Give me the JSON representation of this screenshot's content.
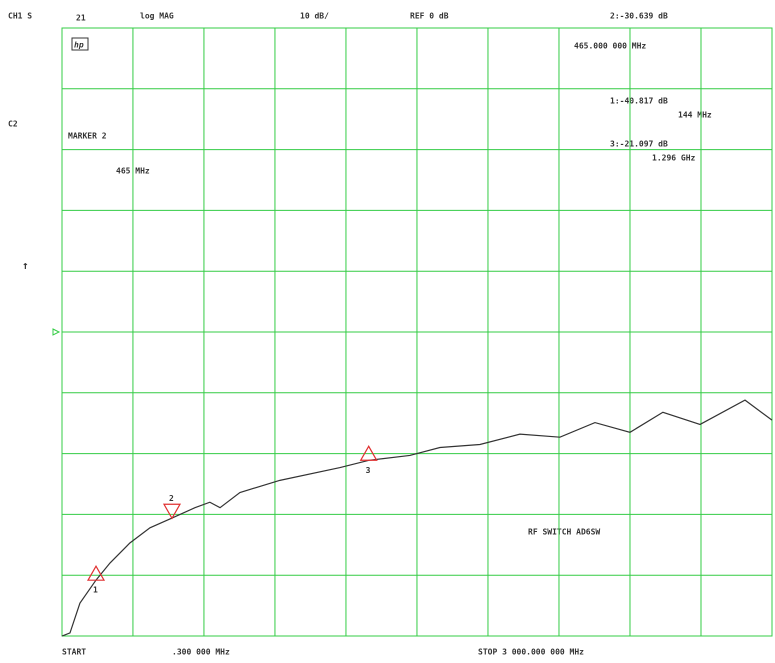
{
  "channel": "CH1 S",
  "param": "21",
  "format": "log MAG",
  "scale": "10 dB/",
  "ref": "REF 0 dB",
  "active_marker_readout": {
    "value": "2:-30.639 dB",
    "freq": "465.000 000 MHz"
  },
  "marker_list": [
    {
      "value": "1:-40.817 dB",
      "freq": "144 MHz"
    },
    {
      "value": "3:-21.097 dB",
      "freq": "1.296 GHz"
    }
  ],
  "side_label": "C2",
  "marker_title": "MARKER 2",
  "marker_freq": "465 MHz",
  "arrow": "↑",
  "logo": "hp",
  "start_label": "START",
  "start_freq": ".300 000 MHz",
  "stop_label": "STOP 3 000.000 000 MHz",
  "trace_title": "RF SWITCH AD6SW",
  "chart_data": {
    "type": "line",
    "x": [
      0.3,
      34,
      76,
      144,
      203,
      287,
      372,
      465,
      562,
      625,
      668,
      752,
      921,
      1175,
      1297,
      1470,
      1597,
      1766,
      1935,
      2104,
      2252,
      2400,
      2539,
      2696,
      2886,
      3000
    ],
    "series": [
      {
        "color": "#333333",
        "values": [
          -50,
          -49.5,
          -44.6,
          -40.8,
          -38,
          -34.7,
          -32.2,
          -30.6,
          -28.9,
          -28,
          -28.9,
          -26.4,
          -24.4,
          -22.3,
          -21.1,
          -20.3,
          -19,
          -18.5,
          -16.8,
          -17.3,
          -14.9,
          -16.5,
          -13.2,
          -15.2,
          -11.2,
          -14.5
        ]
      }
    ],
    "markers": [
      {
        "label": "1",
        "x": 144,
        "y": -40.817
      },
      {
        "label": "2",
        "x": 465,
        "y": -30.639,
        "active": true
      },
      {
        "label": "3",
        "x": 1296,
        "y": -21.097
      }
    ],
    "marker_color": "#e03030",
    "grid_color": "#33cc44",
    "xlim": [
      0.3,
      3000
    ],
    "xticks": [
      300,
      600,
      900,
      1200,
      1500,
      1800,
      2100,
      2400,
      2700
    ],
    "ylim": [
      -50,
      50
    ],
    "yticks": [
      -40,
      -30,
      -20,
      -10,
      0,
      10,
      20,
      30,
      40
    ],
    "grid": true,
    "ref_value": 0
  }
}
